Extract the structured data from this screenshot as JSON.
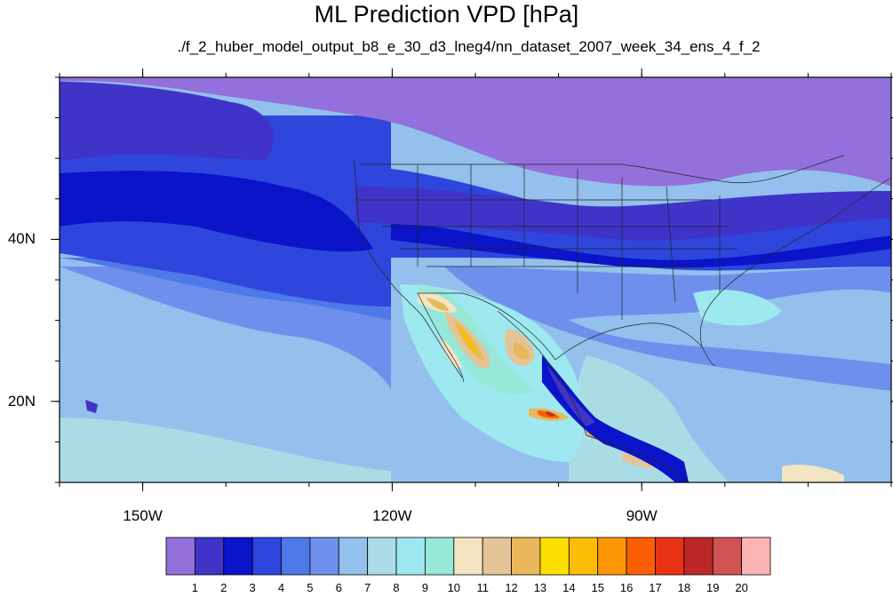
{
  "title": "ML Prediction VPD [hPa]",
  "subtitle": "./f_2_huber_model_output_b8_e_30_d3_lneg4/nn_dataset_2007_week_34_ens_4_f_2",
  "map": {
    "projection": "cylindrical-equidistant",
    "lon_range": [
      -160,
      -60
    ],
    "lat_range": [
      10,
      60
    ],
    "lon_ticks": [
      {
        "value": -150,
        "label": "150W"
      },
      {
        "value": -120,
        "label": "120W"
      },
      {
        "value": -90,
        "label": "90W"
      }
    ],
    "lat_ticks": [
      {
        "value": 40,
        "label": "40N"
      },
      {
        "value": 20,
        "label": "20N"
      }
    ],
    "boundaries": [
      "coastlines",
      "us-states",
      "mexico-states"
    ]
  },
  "colorbar": {
    "labels": [
      "1",
      "2",
      "3",
      "4",
      "5",
      "6",
      "7",
      "8",
      "9",
      "10",
      "11",
      "12",
      "13",
      "14",
      "15",
      "16",
      "17",
      "18",
      "19",
      "20"
    ],
    "colors": [
      "#9370db",
      "#4034c8",
      "#0a14c8",
      "#2e46dc",
      "#4f78e8",
      "#6e90ec",
      "#93c0ec",
      "#aadce6",
      "#9ee8f0",
      "#96e8d8",
      "#f3e4c2",
      "#e2c496",
      "#e8b85a",
      "#fee000",
      "#fcbe04",
      "#fc9604",
      "#fc5e04",
      "#e83214",
      "#bc2828",
      "#d05252",
      "#fcb4b4"
    ]
  }
}
